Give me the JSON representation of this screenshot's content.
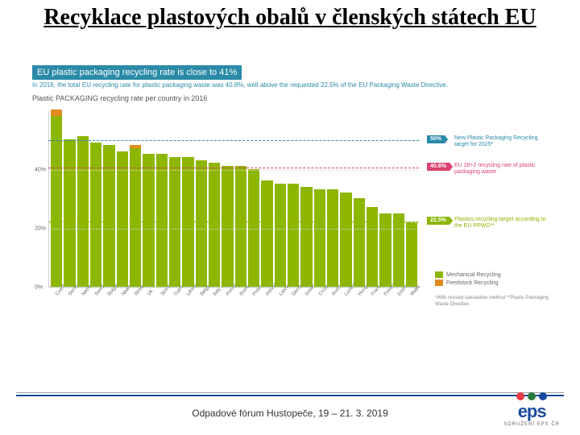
{
  "title": "Recyklace plastových obalů v členských státech EU",
  "chart_header": "EU plastic packaging recycling rate is close to 41%",
  "chart_sub1": "In 2016, the total EU recycling rate for plastic packaging waste was 40.8%,\nwell above the requested 22.5% of the EU Packaging Waste Directive.",
  "chart_sub2": "Plastic PACKAGING recycling rate per country in 2016",
  "colors": {
    "mech": "#8db600",
    "feed": "#e28b1e",
    "grid": "#dddddd",
    "axis": "#cccccc",
    "blue": "#2a8aa8",
    "pink": "#d9426e",
    "green": "#8db600"
  },
  "yaxis": {
    "max": 60,
    "ticks": [
      0,
      20,
      40
    ],
    "labels": [
      "0%",
      "20%",
      "40%"
    ]
  },
  "countries": [
    {
      "n": "Czechia",
      "m": 58,
      "f": 2
    },
    {
      "n": "Germany",
      "m": 50,
      "f": 0
    },
    {
      "n": "Netherlands",
      "m": 51,
      "f": 0
    },
    {
      "n": "Sweden",
      "m": 49,
      "f": 0
    },
    {
      "n": "Bulgaria",
      "m": 48,
      "f": 0
    },
    {
      "n": "Spain",
      "m": 46,
      "f": 0
    },
    {
      "n": "Slovenia",
      "m": 47,
      "f": 1
    },
    {
      "n": "UK",
      "m": 45,
      "f": 0
    },
    {
      "n": "Slovakia",
      "m": 45,
      "f": 0
    },
    {
      "n": "Cyprus",
      "m": 44,
      "f": 0
    },
    {
      "n": "Lithuania",
      "m": 44,
      "f": 0
    },
    {
      "n": "Belgium",
      "m": 43,
      "f": 0
    },
    {
      "n": "Italy",
      "m": 42,
      "f": 0
    },
    {
      "n": "Portugal",
      "m": 41,
      "f": 0
    },
    {
      "n": "Romania",
      "m": 41,
      "f": 0
    },
    {
      "n": "Poland",
      "m": 40,
      "f": 0
    },
    {
      "n": "Ireland",
      "m": 36,
      "f": 0
    },
    {
      "n": "Latvia",
      "m": 35,
      "f": 0
    },
    {
      "n": "Denmark",
      "m": 35,
      "f": 0
    },
    {
      "n": "Greece",
      "m": 34,
      "f": 0
    },
    {
      "n": "Croatia",
      "m": 33,
      "f": 0
    },
    {
      "n": "Austria",
      "m": 33,
      "f": 0
    },
    {
      "n": "Luxembourg",
      "m": 32,
      "f": 0
    },
    {
      "n": "Hungary",
      "m": 30,
      "f": 0
    },
    {
      "n": "France",
      "m": 27,
      "f": 0
    },
    {
      "n": "Finland",
      "m": 25,
      "f": 0
    },
    {
      "n": "Estonia",
      "m": 25,
      "f": 0
    },
    {
      "n": "Malta",
      "m": 22,
      "f": 0
    }
  ],
  "hlines": [
    {
      "v": 50,
      "color": "#2a8aa8",
      "tag": "50%",
      "tag_bg": "#2a8aa8",
      "text": "New Plastic Packaging Recycling target for 2025*",
      "tcolor": "#2a8aa8"
    },
    {
      "v": 40.8,
      "color": "#d9426e",
      "tag": "40.8%",
      "tag_bg": "#d9426e",
      "text": "EU 28+2 recycling rate of plastic packaging waste",
      "tcolor": "#d9426e"
    },
    {
      "v": 22.5,
      "color": "#8db600",
      "tag": "22.5%",
      "tag_bg": "#8db600",
      "text": "Plastics recycling target according to the EU PPWD**",
      "tcolor": "#8db600"
    }
  ],
  "legend": [
    {
      "c": "#8db600",
      "t": "Mechanical Recycling"
    },
    {
      "c": "#e28b1e",
      "t": "Feedstock Recycling"
    }
  ],
  "footnotes": "*With revised calculation method\n**Plastic Packaging Waste Directive",
  "footer": "Odpadové fórum Hustopeče, 19 – 21. 3. 2019",
  "logo": {
    "text": "eps",
    "sub": "SDRUŽENÍ EPS ČR",
    "dots": [
      "#e63946",
      "#2a7a3a",
      "#1a4a9c"
    ]
  }
}
